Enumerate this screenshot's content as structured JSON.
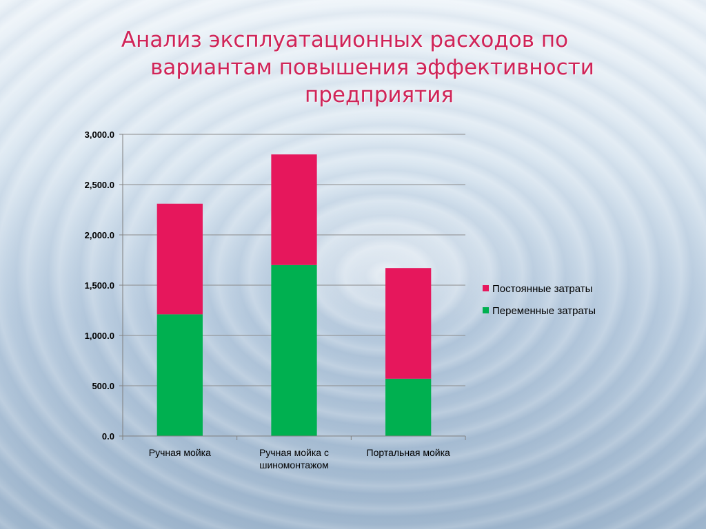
{
  "title": {
    "line1": "Анализ эксплуатационных расходов по",
    "line2": "вариантам повышения эффективности",
    "line3": "предприятия"
  },
  "chart_data": {
    "type": "bar",
    "stacked": true,
    "categories": [
      [
        "Ручная мойка"
      ],
      [
        "Ручная мойка с",
        "шиномонтажом"
      ],
      [
        "Портальная мойка"
      ]
    ],
    "series": [
      {
        "name": "Переменные затраты",
        "color": "#00b050",
        "values": [
          1210,
          1700,
          570
        ]
      },
      {
        "name": "Постоянные затраты",
        "color": "#e6175c",
        "values": [
          1100,
          1100,
          1100
        ]
      }
    ],
    "ylim": [
      0,
      3000
    ],
    "yticks": [
      0,
      500,
      1000,
      1500,
      2000,
      2500,
      3000
    ],
    "ytick_labels": [
      "0.0",
      "500.0",
      "1,000.0",
      "1,500.0",
      "2,000.0",
      "2,500.0",
      "3,000.0"
    ],
    "grid": true,
    "legend": {
      "placement": "right",
      "entries": [
        {
          "label": "Постоянные затраты",
          "color": "#e6175c"
        },
        {
          "label": "Переменные затраты",
          "color": "#00b050"
        }
      ]
    }
  }
}
